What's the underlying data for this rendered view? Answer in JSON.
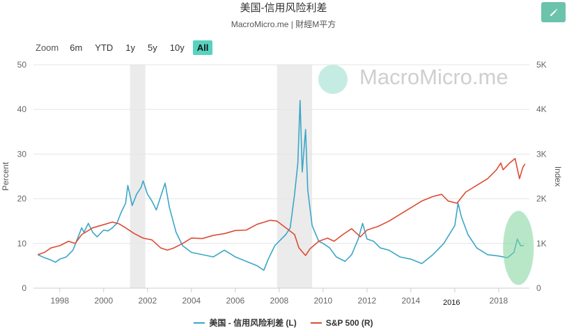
{
  "header": {
    "title": "美国-信用风险利差",
    "subtitle": "MacroMicro.me | 財經M平方",
    "edit_icon": "pencil-icon"
  },
  "zoom": {
    "label": "Zoom",
    "options": [
      "6m",
      "YTD",
      "1y",
      "5y",
      "10y",
      "All"
    ],
    "active": "All"
  },
  "watermark": {
    "text": "MacroMicro.me",
    "icon": "chart-line-icon"
  },
  "annotation": {
    "text": "2016"
  },
  "colors": {
    "spread": "#3aa6c7",
    "sp500": "#dd4a35",
    "recession": "#ebebeb",
    "highlight": "#7ed39a",
    "accent": "#56d3bf"
  },
  "chart_data": {
    "type": "line",
    "xlabel": "",
    "ylabel_left": "Percent",
    "ylabel_right": "Index",
    "x_ticks": [
      "1998",
      "2000",
      "2002",
      "2004",
      "2006",
      "2008",
      "2010",
      "2012",
      "2014",
      "2016",
      "2018"
    ],
    "y_left_ticks": [
      "0",
      "10",
      "20",
      "30",
      "40",
      "50"
    ],
    "y_right_ticks": [
      "0",
      "1K",
      "2K",
      "3K",
      "4K",
      "5K"
    ],
    "ylim_left": [
      0,
      50
    ],
    "ylim_right": [
      0,
      5000
    ],
    "xlim": [
      1996.8,
      2019.4
    ],
    "grid": true,
    "recession_bands": [
      [
        2001.2,
        2001.9
      ],
      [
        2007.9,
        2009.5
      ]
    ],
    "highlight_ellipse": {
      "center_x": 2018.9,
      "center_y": 9.0,
      "radius_x": 0.7,
      "radius_y": 8.3
    },
    "legend_position": "bottom",
    "series": [
      {
        "name": "美国 - 信用风险利差 (L)",
        "axis": "left",
        "points": [
          [
            1997.0,
            7.5
          ],
          [
            1997.3,
            6.8
          ],
          [
            1997.6,
            6.3
          ],
          [
            1997.8,
            5.8
          ],
          [
            1998.0,
            6.5
          ],
          [
            1998.3,
            7.0
          ],
          [
            1998.6,
            8.5
          ],
          [
            1998.8,
            11.0
          ],
          [
            1999.0,
            13.5
          ],
          [
            1999.1,
            12.5
          ],
          [
            1999.3,
            14.5
          ],
          [
            1999.5,
            12.5
          ],
          [
            1999.7,
            11.5
          ],
          [
            2000.0,
            13.0
          ],
          [
            2000.2,
            12.8
          ],
          [
            2000.4,
            13.5
          ],
          [
            2000.6,
            14.5
          ],
          [
            2000.8,
            17.0
          ],
          [
            2001.0,
            19.0
          ],
          [
            2001.1,
            23.0
          ],
          [
            2001.3,
            18.5
          ],
          [
            2001.5,
            21.0
          ],
          [
            2001.7,
            22.5
          ],
          [
            2001.8,
            24.0
          ],
          [
            2002.0,
            21.0
          ],
          [
            2002.2,
            19.5
          ],
          [
            2002.4,
            17.5
          ],
          [
            2002.6,
            20.5
          ],
          [
            2002.8,
            23.5
          ],
          [
            2003.0,
            18.0
          ],
          [
            2003.3,
            12.5
          ],
          [
            2003.6,
            9.5
          ],
          [
            2004.0,
            8.0
          ],
          [
            2004.5,
            7.5
          ],
          [
            2005.0,
            7.0
          ],
          [
            2005.5,
            8.5
          ],
          [
            2006.0,
            7.0
          ],
          [
            2006.5,
            6.0
          ],
          [
            2007.0,
            5.0
          ],
          [
            2007.3,
            4.0
          ],
          [
            2007.5,
            6.5
          ],
          [
            2007.8,
            9.5
          ],
          [
            2008.0,
            10.5
          ],
          [
            2008.3,
            12.0
          ],
          [
            2008.5,
            13.5
          ],
          [
            2008.7,
            21.0
          ],
          [
            2008.85,
            28.0
          ],
          [
            2008.95,
            42.0
          ],
          [
            2009.05,
            26.0
          ],
          [
            2009.2,
            35.5
          ],
          [
            2009.3,
            22.0
          ],
          [
            2009.5,
            14.0
          ],
          [
            2009.8,
            10.5
          ],
          [
            2010.0,
            10.0
          ],
          [
            2010.3,
            9.0
          ],
          [
            2010.6,
            7.0
          ],
          [
            2011.0,
            6.0
          ],
          [
            2011.3,
            7.5
          ],
          [
            2011.6,
            11.0
          ],
          [
            2011.8,
            14.5
          ],
          [
            2012.0,
            11.0
          ],
          [
            2012.3,
            10.5
          ],
          [
            2012.6,
            9.0
          ],
          [
            2013.0,
            8.5
          ],
          [
            2013.5,
            7.0
          ],
          [
            2014.0,
            6.5
          ],
          [
            2014.5,
            5.5
          ],
          [
            2015.0,
            7.5
          ],
          [
            2015.5,
            10.0
          ],
          [
            2016.0,
            14.0
          ],
          [
            2016.15,
            19.0
          ],
          [
            2016.3,
            16.0
          ],
          [
            2016.6,
            12.0
          ],
          [
            2017.0,
            9.0
          ],
          [
            2017.5,
            7.5
          ],
          [
            2018.0,
            7.2
          ],
          [
            2018.4,
            6.8
          ],
          [
            2018.7,
            8.0
          ],
          [
            2018.85,
            11.0
          ],
          [
            2019.0,
            9.5
          ],
          [
            2019.15,
            9.5
          ]
        ]
      },
      {
        "name": "S&P 500 (R)",
        "axis": "right",
        "points": [
          [
            1997.0,
            750
          ],
          [
            1997.3,
            800
          ],
          [
            1997.6,
            900
          ],
          [
            1998.0,
            950
          ],
          [
            1998.4,
            1050
          ],
          [
            1998.7,
            1000
          ],
          [
            1999.0,
            1200
          ],
          [
            1999.5,
            1350
          ],
          [
            2000.0,
            1420
          ],
          [
            2000.4,
            1480
          ],
          [
            2000.7,
            1440
          ],
          [
            2001.0,
            1350
          ],
          [
            2001.4,
            1220
          ],
          [
            2001.8,
            1120
          ],
          [
            2002.2,
            1080
          ],
          [
            2002.6,
            900
          ],
          [
            2002.9,
            850
          ],
          [
            2003.2,
            900
          ],
          [
            2003.6,
            1000
          ],
          [
            2004.0,
            1120
          ],
          [
            2004.5,
            1110
          ],
          [
            2005.0,
            1180
          ],
          [
            2005.5,
            1220
          ],
          [
            2006.0,
            1290
          ],
          [
            2006.5,
            1300
          ],
          [
            2007.0,
            1430
          ],
          [
            2007.6,
            1520
          ],
          [
            2007.9,
            1500
          ],
          [
            2008.3,
            1350
          ],
          [
            2008.7,
            1200
          ],
          [
            2008.9,
            900
          ],
          [
            2009.2,
            730
          ],
          [
            2009.4,
            880
          ],
          [
            2009.8,
            1050
          ],
          [
            2010.2,
            1120
          ],
          [
            2010.5,
            1050
          ],
          [
            2010.9,
            1200
          ],
          [
            2011.3,
            1330
          ],
          [
            2011.7,
            1150
          ],
          [
            2012.0,
            1300
          ],
          [
            2012.5,
            1380
          ],
          [
            2013.0,
            1500
          ],
          [
            2013.5,
            1650
          ],
          [
            2014.0,
            1800
          ],
          [
            2014.5,
            1950
          ],
          [
            2015.0,
            2050
          ],
          [
            2015.4,
            2100
          ],
          [
            2015.7,
            1950
          ],
          [
            2016.1,
            1900
          ],
          [
            2016.5,
            2150
          ],
          [
            2017.0,
            2300
          ],
          [
            2017.5,
            2450
          ],
          [
            2017.9,
            2650
          ],
          [
            2018.1,
            2800
          ],
          [
            2018.2,
            2650
          ],
          [
            2018.5,
            2800
          ],
          [
            2018.75,
            2900
          ],
          [
            2018.95,
            2450
          ],
          [
            2019.1,
            2700
          ],
          [
            2019.2,
            2780
          ]
        ]
      }
    ]
  }
}
